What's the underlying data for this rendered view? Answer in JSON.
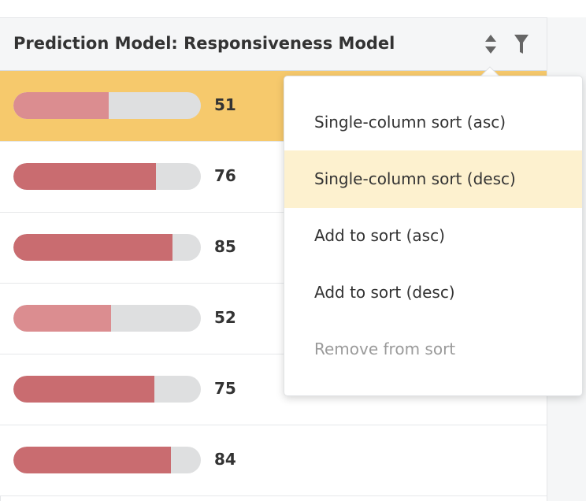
{
  "header": {
    "title": "Prediction Model: Responsiveness Model",
    "sort_icon": "sort-updown-icon",
    "filter_icon": "filter-icon"
  },
  "rows": [
    {
      "value": "51",
      "fill_fraction": 0.51,
      "selected": true
    },
    {
      "value": "76",
      "fill_fraction": 0.76,
      "selected": false
    },
    {
      "value": "85",
      "fill_fraction": 0.85,
      "selected": false
    },
    {
      "value": "52",
      "fill_fraction": 0.52,
      "selected": false
    },
    {
      "value": "75",
      "fill_fraction": 0.75,
      "selected": false
    },
    {
      "value": "84",
      "fill_fraction": 0.84,
      "selected": false
    }
  ],
  "menu": {
    "items": [
      {
        "label": "Single-column sort (asc)",
        "state": "normal"
      },
      {
        "label": "Single-column sort (desc)",
        "state": "highlighted"
      },
      {
        "label": "Add to sort (asc)",
        "state": "normal"
      },
      {
        "label": "Add to sort (desc)",
        "state": "normal"
      },
      {
        "label": "Remove from sort",
        "state": "disabled"
      }
    ]
  },
  "colors": {
    "selected_row": "#f6c96c",
    "bar_high": "#c96c70",
    "bar_low": "#db8d90",
    "bar_track": "#dedfe0",
    "menu_highlight": "#fdf1cf"
  }
}
